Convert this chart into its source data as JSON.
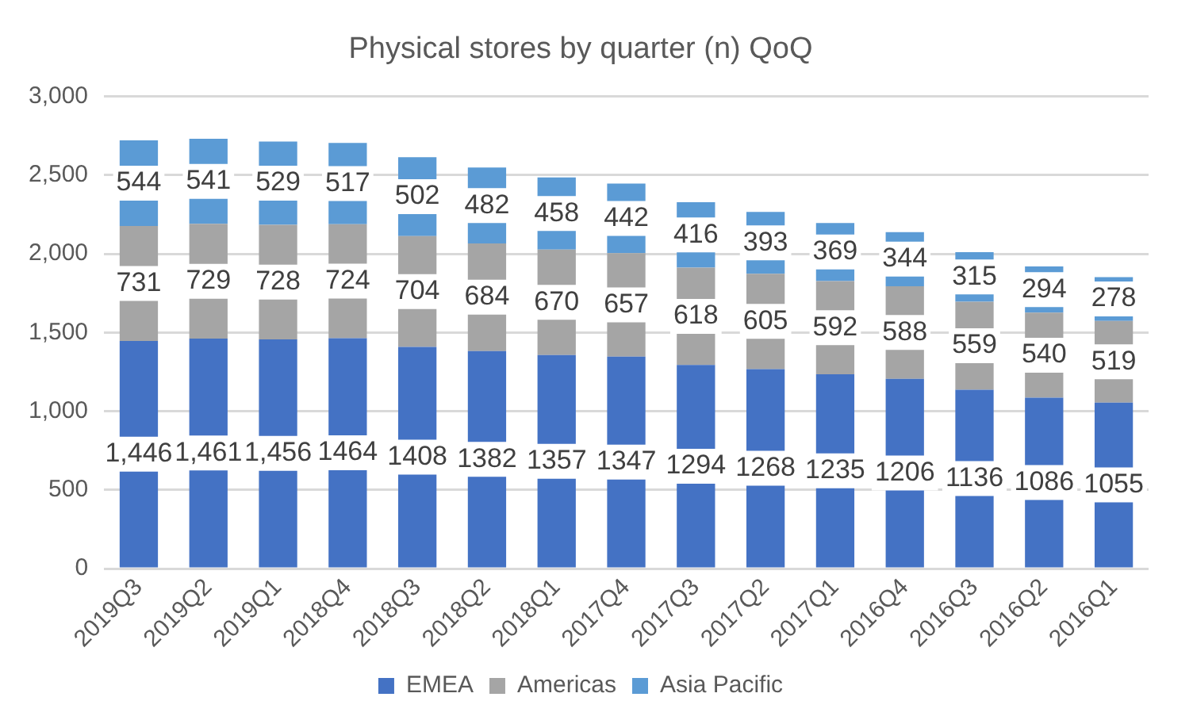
{
  "chart_data": {
    "type": "bar",
    "title": "Physical stores by quarter (n) QoQ",
    "stacked": true,
    "grid": "y",
    "legend": "bottom",
    "categories": [
      "2019Q3",
      "2019Q2",
      "2019Q1",
      "2018Q4",
      "2018Q3",
      "2018Q2",
      "2018Q1",
      "2017Q4",
      "2017Q3",
      "2017Q2",
      "2017Q1",
      "2016Q4",
      "2016Q3",
      "2016Q2",
      "2016Q1"
    ],
    "ylim": [
      0,
      3000
    ],
    "yticks": [
      {
        "value": 0,
        "label": "0"
      },
      {
        "value": 500,
        "label": "500"
      },
      {
        "value": 1000,
        "label": "1,000"
      },
      {
        "value": 1500,
        "label": "1,500"
      },
      {
        "value": 2000,
        "label": "2,000"
      },
      {
        "value": 2500,
        "label": "2,500"
      },
      {
        "value": 3000,
        "label": "3,000"
      }
    ],
    "series": [
      {
        "name": "EMEA",
        "color": "#4472c4",
        "values": [
          1446,
          1461,
          1456,
          1464,
          1408,
          1382,
          1357,
          1347,
          1294,
          1268,
          1235,
          1206,
          1136,
          1086,
          1055
        ],
        "value_labels": [
          "1,446",
          "1,461",
          "1,456",
          "1464",
          "1408",
          "1382",
          "1357",
          "1347",
          "1294",
          "1268",
          "1235",
          "1206",
          "1136",
          "1086",
          "1055"
        ]
      },
      {
        "name": "Americas",
        "color": "#a5a5a5",
        "values": [
          731,
          729,
          728,
          724,
          704,
          684,
          670,
          657,
          618,
          605,
          592,
          588,
          559,
          540,
          519
        ],
        "value_labels": [
          "731",
          "729",
          "728",
          "724",
          "704",
          "684",
          "670",
          "657",
          "618",
          "605",
          "592",
          "588",
          "559",
          "540",
          "519"
        ]
      },
      {
        "name": "Asia Pacific",
        "color": "#5b9bd5",
        "values": [
          544,
          541,
          529,
          517,
          502,
          482,
          458,
          442,
          416,
          393,
          369,
          344,
          315,
          294,
          278
        ],
        "value_labels": [
          "544",
          "541",
          "529",
          "517",
          "502",
          "482",
          "458",
          "442",
          "416",
          "393",
          "369",
          "344",
          "315",
          "294",
          "278"
        ]
      }
    ]
  }
}
